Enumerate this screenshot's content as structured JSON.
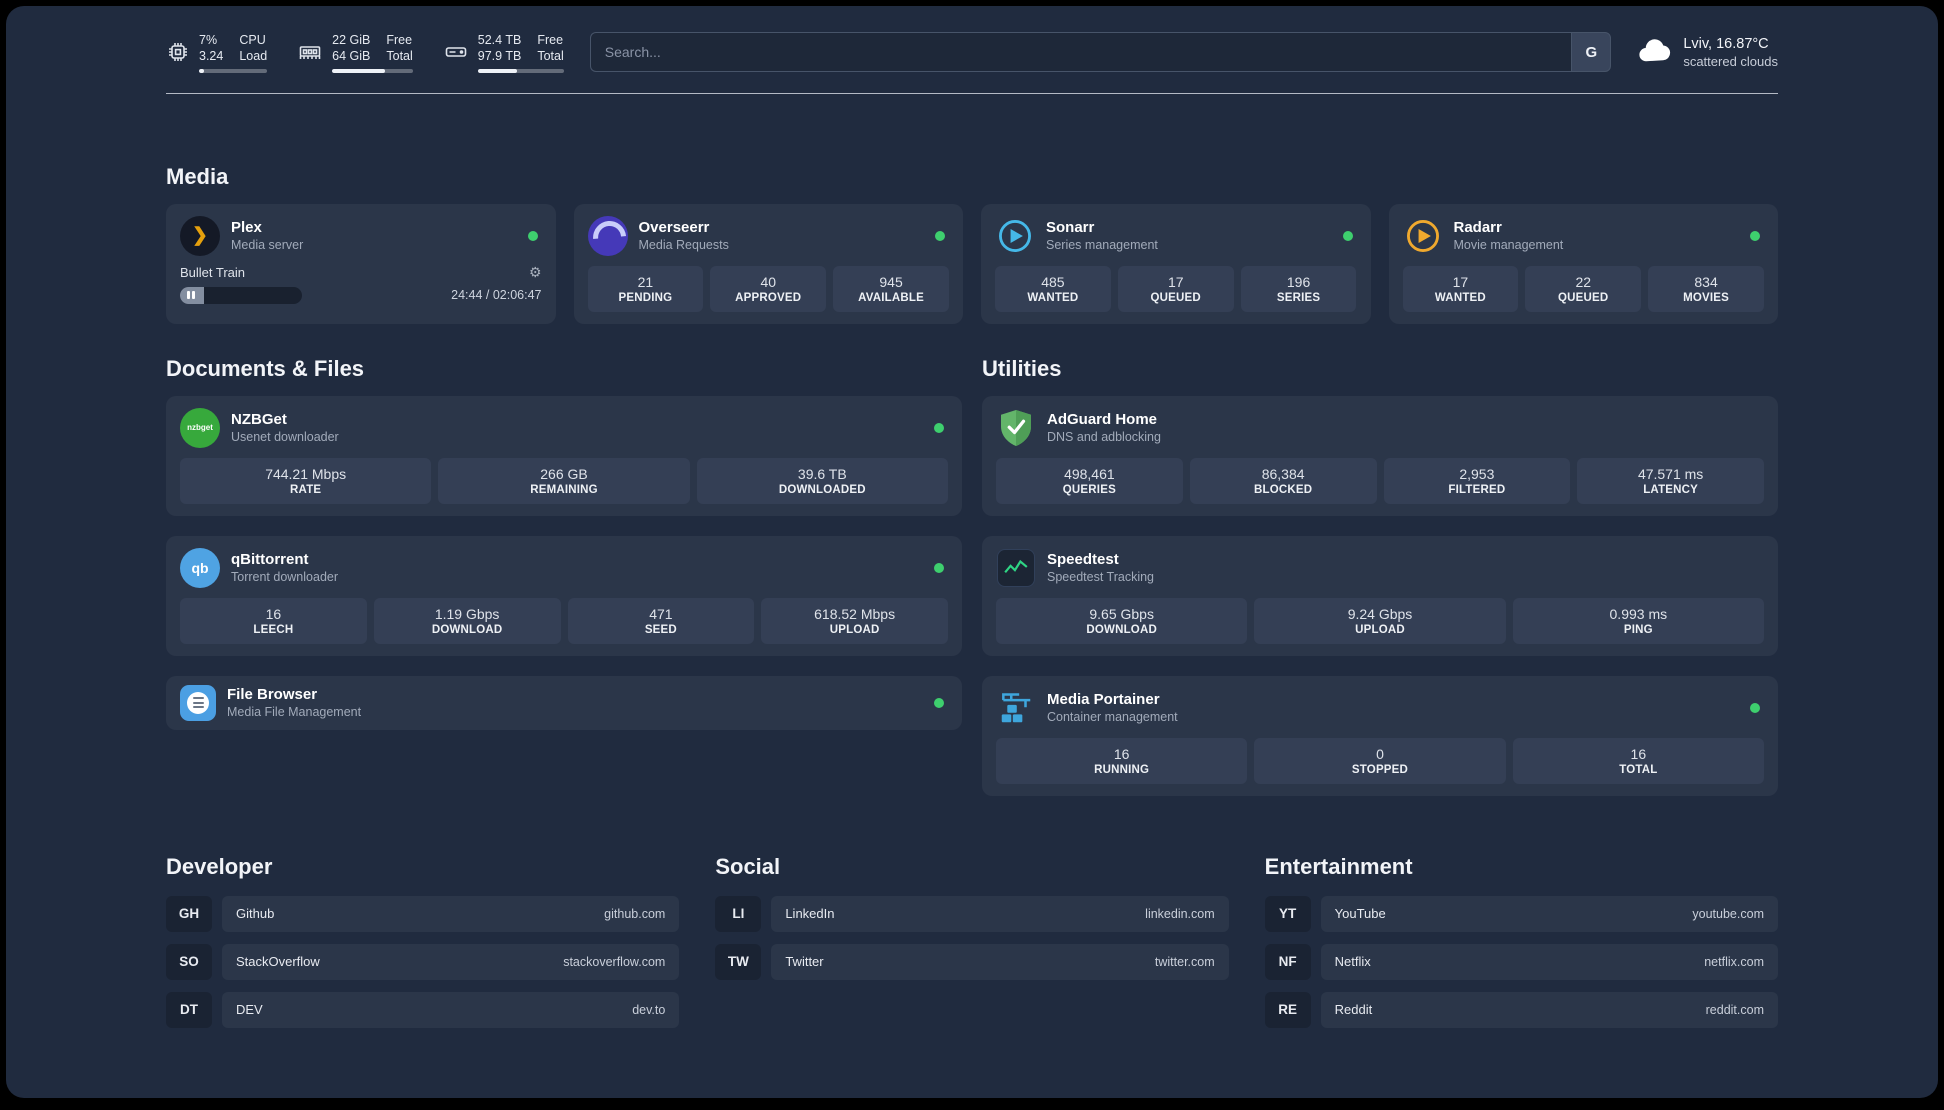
{
  "topbar": {
    "metrics": [
      {
        "value": "7%",
        "value2": "3.24",
        "label1": "CPU",
        "label2": "Load",
        "percent": 7
      },
      {
        "value": "22 GiB",
        "value2": "64 GiB",
        "label1": "Free",
        "label2": "Total",
        "percent": 66
      },
      {
        "value": "52.4 TB",
        "value2": "97.9 TB",
        "label1": "Free",
        "label2": "Total",
        "percent": 46
      }
    ],
    "search": {
      "placeholder": "Search...",
      "engine_label": "G"
    },
    "weather": {
      "location": "Lviv, 16.87°C",
      "condition": "scattered clouds"
    }
  },
  "icons": {
    "gear": "⚙",
    "plex_chevron": "❯",
    "nzbget_label": "nzbget",
    "qb_label": "qb"
  },
  "media": {
    "title": "Media",
    "plex": {
      "name": "Plex",
      "subtitle": "Media server",
      "now_playing": "Bullet Train",
      "time": "24:44 / 02:06:47",
      "progress_percent": 20
    },
    "overseerr": {
      "name": "Overseerr",
      "subtitle": "Media Requests",
      "stats": [
        {
          "value": "21",
          "label": "PENDING"
        },
        {
          "value": "40",
          "label": "APPROVED"
        },
        {
          "value": "945",
          "label": "AVAILABLE"
        }
      ]
    },
    "sonarr": {
      "name": "Sonarr",
      "subtitle": "Series management",
      "stats": [
        {
          "value": "485",
          "label": "WANTED"
        },
        {
          "value": "17",
          "label": "QUEUED"
        },
        {
          "value": "196",
          "label": "SERIES"
        }
      ]
    },
    "radarr": {
      "name": "Radarr",
      "subtitle": "Movie management",
      "stats": [
        {
          "value": "17",
          "label": "WANTED"
        },
        {
          "value": "22",
          "label": "QUEUED"
        },
        {
          "value": "834",
          "label": "MOVIES"
        }
      ]
    }
  },
  "documents": {
    "title": "Documents & Files",
    "nzbget": {
      "name": "NZBGet",
      "subtitle": "Usenet downloader",
      "stats": [
        {
          "value": "744.21 Mbps",
          "label": "RATE"
        },
        {
          "value": "266 GB",
          "label": "REMAINING"
        },
        {
          "value": "39.6 TB",
          "label": "DOWNLOADED"
        }
      ]
    },
    "qbittorrent": {
      "name": "qBittorrent",
      "subtitle": "Torrent downloader",
      "stats": [
        {
          "value": "16",
          "label": "LEECH"
        },
        {
          "value": "1.19 Gbps",
          "label": "DOWNLOAD"
        },
        {
          "value": "471",
          "label": "SEED"
        },
        {
          "value": "618.52 Mbps",
          "label": "UPLOAD"
        }
      ]
    },
    "filebrowser": {
      "name": "File Browser",
      "subtitle": "Media File Management"
    }
  },
  "utilities": {
    "title": "Utilities",
    "adguard": {
      "name": "AdGuard Home",
      "subtitle": "DNS and adblocking",
      "stats": [
        {
          "value": "498,461",
          "label": "QUERIES"
        },
        {
          "value": "86,384",
          "label": "BLOCKED"
        },
        {
          "value": "2,953",
          "label": "FILTERED"
        },
        {
          "value": "47.571 ms",
          "label": "LATENCY"
        }
      ]
    },
    "speedtest": {
      "name": "Speedtest",
      "subtitle": "Speedtest Tracking",
      "stats": [
        {
          "value": "9.65 Gbps",
          "label": "DOWNLOAD"
        },
        {
          "value": "9.24 Gbps",
          "label": "UPLOAD"
        },
        {
          "value": "0.993 ms",
          "label": "PING"
        }
      ]
    },
    "portainer": {
      "name": "Media Portainer",
      "subtitle": "Container management",
      "stats": [
        {
          "value": "16",
          "label": "RUNNING"
        },
        {
          "value": "0",
          "label": "STOPPED"
        },
        {
          "value": "16",
          "label": "TOTAL"
        }
      ]
    }
  },
  "bookmarks": [
    {
      "title": "Developer",
      "items": [
        {
          "abbr": "GH",
          "name": "Github",
          "url": "github.com"
        },
        {
          "abbr": "SO",
          "name": "StackOverflow",
          "url": "stackoverflow.com"
        },
        {
          "abbr": "DT",
          "name": "DEV",
          "url": "dev.to"
        }
      ]
    },
    {
      "title": "Social",
      "items": [
        {
          "abbr": "LI",
          "name": "LinkedIn",
          "url": "linkedin.com"
        },
        {
          "abbr": "TW",
          "name": "Twitter",
          "url": "twitter.com"
        }
      ]
    },
    {
      "title": "Entertainment",
      "items": [
        {
          "abbr": "YT",
          "name": "YouTube",
          "url": "youtube.com"
        },
        {
          "abbr": "NF",
          "name": "Netflix",
          "url": "netflix.com"
        },
        {
          "abbr": "RE",
          "name": "Reddit",
          "url": "reddit.com"
        }
      ]
    }
  ],
  "colors": {
    "status_online": "#3ecf6e",
    "plex_gold": "#e5a00d",
    "sonarr_blue": "#45b8e8",
    "radarr_amber": "#f0a92e"
  }
}
